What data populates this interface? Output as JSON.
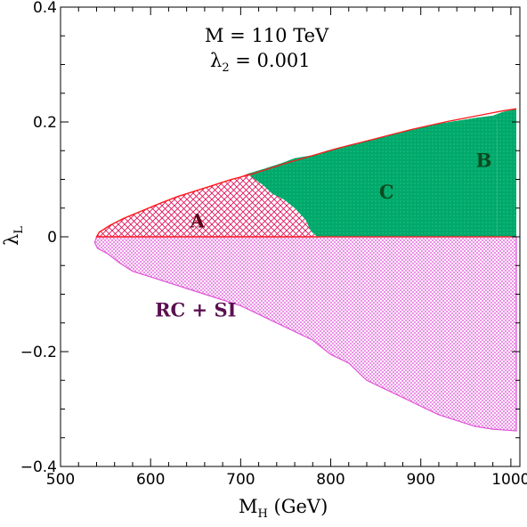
{
  "chart_data": {
    "type": "area",
    "title": "",
    "xlabel": "M",
    "xlabel_sub": "H",
    "xlabel_unit": " (GeV)",
    "ylabel": "λ",
    "ylabel_sub": "L",
    "xlim": [
      500,
      1010
    ],
    "ylim": [
      -0.4,
      0.4
    ],
    "xticks": [
      500,
      600,
      700,
      800,
      900,
      1000
    ],
    "yticks": [
      {
        "value": -0.4,
        "label": "−0.4"
      },
      {
        "value": -0.2,
        "label": "−0.2"
      },
      {
        "value": 0,
        "label": "0"
      },
      {
        "value": 0.2,
        "label": "0.2"
      },
      {
        "value": 0.4,
        "label": "0.4"
      }
    ],
    "xtick_labels": [
      "500",
      "600",
      "700",
      "800",
      "900",
      "1000"
    ],
    "annotations": {
      "line1": "M = 110 TeV",
      "line2_symbol": "λ",
      "line2_sub": "2",
      "line2_rest": " = 0.001"
    },
    "colors": {
      "A": "#e0105a",
      "B": "#00a86b",
      "C": "#00a86b",
      "RC_SI": "#e055d8",
      "outline": "#ff1a1a"
    },
    "regions": [
      {
        "id": "RC_SI",
        "label": "RC + SI",
        "label_at": [
          650,
          -0.13
        ],
        "polygon": [
          [
            540,
            0
          ],
          [
            538,
            -0.01
          ],
          [
            541,
            -0.02
          ],
          [
            553,
            -0.03
          ],
          [
            565,
            -0.045
          ],
          [
            580,
            -0.06
          ],
          [
            600,
            -0.07
          ],
          [
            620,
            -0.08
          ],
          [
            640,
            -0.09
          ],
          [
            660,
            -0.1
          ],
          [
            680,
            -0.11
          ],
          [
            700,
            -0.12
          ],
          [
            720,
            -0.135
          ],
          [
            740,
            -0.15
          ],
          [
            760,
            -0.165
          ],
          [
            780,
            -0.18
          ],
          [
            800,
            -0.205
          ],
          [
            820,
            -0.22
          ],
          [
            840,
            -0.25
          ],
          [
            860,
            -0.265
          ],
          [
            880,
            -0.28
          ],
          [
            900,
            -0.295
          ],
          [
            920,
            -0.31
          ],
          [
            940,
            -0.32
          ],
          [
            960,
            -0.33
          ],
          [
            980,
            -0.335
          ],
          [
            1006,
            -0.338
          ],
          [
            1006,
            0
          ]
        ]
      },
      {
        "id": "A",
        "label": "A",
        "label_at": [
          652,
          0.025
        ],
        "polygon": [
          [
            540,
            0
          ],
          [
            543,
            0.008
          ],
          [
            555,
            0.02
          ],
          [
            570,
            0.032
          ],
          [
            590,
            0.045
          ],
          [
            610,
            0.058
          ],
          [
            630,
            0.07
          ],
          [
            650,
            0.08
          ],
          [
            670,
            0.09
          ],
          [
            690,
            0.1
          ],
          [
            700,
            0.104
          ],
          [
            710,
            0.11
          ],
          [
            727,
            0.116
          ],
          [
            735,
            0.105
          ],
          [
            750,
            0.09
          ],
          [
            760,
            0.075
          ],
          [
            770,
            0.055
          ],
          [
            778,
            0.03
          ],
          [
            783,
            0.01
          ],
          [
            786,
            0
          ]
        ]
      },
      {
        "id": "C",
        "label": "C",
        "label_at": [
          862,
          0.075
        ],
        "polygon": [
          [
            708,
            0.11
          ],
          [
            725,
            0.118
          ],
          [
            745,
            0.128
          ],
          [
            760,
            0.137
          ],
          [
            780,
            0.142
          ],
          [
            800,
            0.152
          ],
          [
            820,
            0.16
          ],
          [
            840,
            0.167
          ],
          [
            860,
            0.175
          ],
          [
            880,
            0.183
          ],
          [
            900,
            0.19
          ],
          [
            920,
            0.197
          ],
          [
            940,
            0.202
          ],
          [
            960,
            0.207
          ],
          [
            980,
            0.211
          ],
          [
            985,
            0.2
          ],
          [
            985,
            0
          ],
          [
            785,
            0
          ],
          [
            778,
            0.01
          ],
          [
            772,
            0.03
          ],
          [
            760,
            0.05
          ],
          [
            748,
            0.065
          ],
          [
            735,
            0.075
          ],
          [
            725,
            0.09
          ],
          [
            716,
            0.1
          ]
        ]
      },
      {
        "id": "B",
        "label": "B",
        "label_at": [
          970,
          0.13
        ],
        "polygon": [
          [
            980,
            0.211
          ],
          [
            992,
            0.218
          ],
          [
            1006,
            0.222
          ],
          [
            1006,
            0
          ],
          [
            985,
            0
          ],
          [
            985,
            0.2
          ]
        ]
      }
    ],
    "boundary_upper": [
      [
        540,
        0
      ],
      [
        543,
        0.008
      ],
      [
        555,
        0.02
      ],
      [
        570,
        0.032
      ],
      [
        590,
        0.045
      ],
      [
        610,
        0.058
      ],
      [
        630,
        0.07
      ],
      [
        650,
        0.08
      ],
      [
        670,
        0.09
      ],
      [
        690,
        0.1
      ],
      [
        710,
        0.108
      ],
      [
        730,
        0.118
      ],
      [
        750,
        0.128
      ],
      [
        770,
        0.137
      ],
      [
        790,
        0.146
      ],
      [
        810,
        0.155
      ],
      [
        830,
        0.163
      ],
      [
        850,
        0.171
      ],
      [
        870,
        0.179
      ],
      [
        890,
        0.187
      ],
      [
        910,
        0.194
      ],
      [
        930,
        0.201
      ],
      [
        950,
        0.207
      ],
      [
        970,
        0.213
      ],
      [
        990,
        0.219
      ],
      [
        1006,
        0.223
      ]
    ],
    "grid": false,
    "legend": "none"
  }
}
